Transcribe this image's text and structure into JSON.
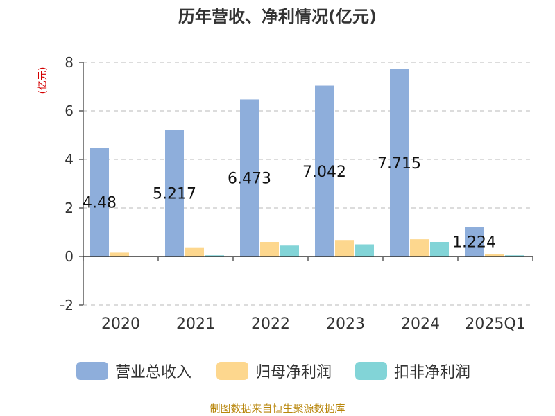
{
  "title": "历年营收、净利情况(亿元)",
  "source_text": "制图数据来自恒生聚源数据库",
  "colors": {
    "series": [
      "#8eaedb",
      "#fdd78e",
      "#82d4d7"
    ],
    "grid": "#c8c8c8",
    "axis": "#333333",
    "unit": "#d40000",
    "label": "#111111"
  },
  "chart_data": {
    "type": "bar",
    "title": "历年营收、净利情况(亿元)",
    "ylabel": "(亿元)",
    "xlabel": "",
    "categories": [
      "2020",
      "2021",
      "2022",
      "2023",
      "2024",
      "2025Q1"
    ],
    "ylim": [
      -2,
      8
    ],
    "yticks": [
      -2,
      0,
      2,
      4,
      6,
      8
    ],
    "grid": true,
    "legend_position": "bottom",
    "series": [
      {
        "name": "营业总收入",
        "values": [
          4.48,
          5.217,
          6.473,
          7.042,
          7.715,
          1.224
        ],
        "labels": [
          "4.48",
          "5.217",
          "6.473",
          "7.042",
          "7.715",
          "1.224"
        ]
      },
      {
        "name": "归母净利润",
        "values": [
          0.16,
          0.38,
          0.6,
          0.68,
          0.71,
          0.1
        ]
      },
      {
        "name": "扣非净利润",
        "values": [
          0.01,
          0.05,
          0.45,
          0.5,
          0.6,
          0.05
        ]
      }
    ]
  }
}
